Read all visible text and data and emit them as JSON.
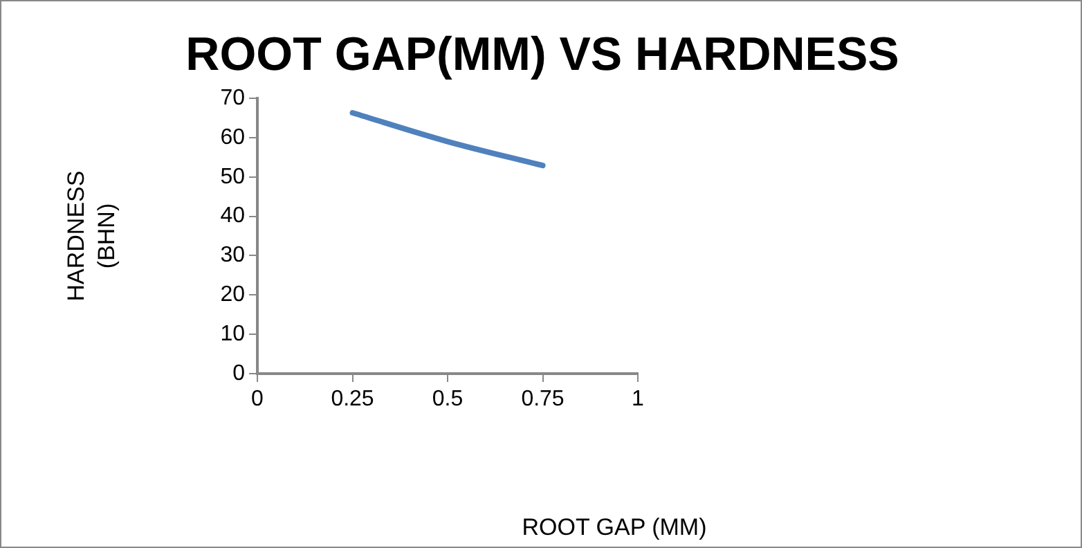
{
  "chart_data": {
    "type": "line",
    "title": "ROOT GAP(MM) VS HARDNESS",
    "xlabel": "ROOT GAP (MM)",
    "ylabel": "HARDNESS\n(BHN)",
    "x": [
      0.25,
      0.5,
      0.75
    ],
    "series": [
      {
        "color": "#4f81bd",
        "values": [
          66.3,
          59,
          52.9
        ]
      }
    ],
    "xlim": [
      0,
      1
    ],
    "xticks": [
      0,
      0.25,
      0.5,
      0.75,
      1
    ],
    "ylim": [
      0,
      70
    ],
    "yticks": [
      0,
      10,
      20,
      30,
      40,
      50,
      60,
      70
    ],
    "grid": false,
    "legend": false,
    "marker": "none",
    "line_style": "solid"
  }
}
